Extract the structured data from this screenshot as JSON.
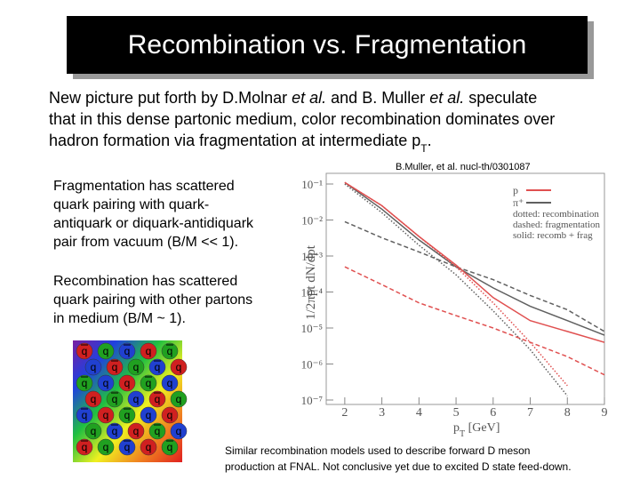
{
  "title": "Recombination vs. Fragmentation",
  "intro": [
    [
      {
        "text": "New picture put forth by D.Molnar "
      },
      {
        "text": "et al.",
        "italic": true
      },
      {
        "text": " and B. Muller "
      },
      {
        "text": "et al.",
        "italic": true
      },
      {
        "text": " speculate"
      }
    ],
    [
      {
        "text": "that in this dense partonic medium, color recombination dominates over"
      }
    ],
    [
      {
        "text": "hadron formation via fragmentation at intermediate p"
      },
      {
        "text": "T",
        "sub": true
      },
      {
        "text": "."
      }
    ]
  ],
  "citation": "B.Muller, et al. nucl-th/0301087",
  "fragmentation": [
    "Fragmentation has scattered",
    "quark pairing with quark-",
    "antiquark or diquark-antidiquark",
    "pair from vacuum (B/M << 1)."
  ],
  "recombination": [
    "Recombination has scattered",
    "quark pairing with other partons",
    "in medium (B/M ~ 1)."
  ],
  "quarks": [
    {
      "label": "q",
      "anti": true
    },
    {
      "label": "q"
    },
    {
      "label": "q",
      "anti": true
    },
    {
      "label": "q"
    },
    {
      "label": "q",
      "anti": true
    },
    {
      "label": "q"
    },
    {
      "label": "q",
      "anti": true
    },
    {
      "label": "q"
    },
    {
      "label": "q",
      "anti": true
    },
    {
      "label": "q"
    },
    {
      "label": "q",
      "anti": true
    },
    {
      "label": "q"
    },
    {
      "label": "q"
    },
    {
      "label": "q",
      "anti": true
    },
    {
      "label": "q"
    },
    {
      "label": "q"
    },
    {
      "label": "q",
      "anti": true
    },
    {
      "label": "q"
    },
    {
      "label": "q",
      "anti": true
    },
    {
      "label": "q"
    },
    {
      "label": "q",
      "anti": true
    },
    {
      "label": "q"
    },
    {
      "label": "q",
      "anti": true
    },
    {
      "label": "q"
    },
    {
      "label": "q"
    },
    {
      "label": "q"
    },
    {
      "label": "q",
      "anti": true
    },
    {
      "label": "q"
    },
    {
      "label": "q",
      "anti": true
    },
    {
      "label": "q"
    },
    {
      "label": "q",
      "anti": true
    },
    {
      "label": "q"
    },
    {
      "label": "q",
      "anti": true
    },
    {
      "label": "q"
    },
    {
      "label": "q",
      "anti": true
    }
  ],
  "footer": [
    "Similar recombination models used to describe forward D meson",
    "production at FNAL.  Not conclusive yet due to excited D state feed-down."
  ],
  "chart_data": {
    "type": "line",
    "y_label": "1/2πpt dN/dpt",
    "x_label": {
      "main": "p",
      "sub": "T",
      "rest": " [GeV]"
    },
    "x": [
      2,
      3,
      4,
      5,
      6,
      7,
      8,
      9
    ],
    "xlim": [
      1.5,
      9
    ],
    "xticks": [
      2,
      3,
      4,
      5,
      6,
      7,
      8,
      9
    ],
    "ylim": [
      1e-07,
      0.1
    ],
    "log_y": true,
    "yticks": [
      {
        "value": 0.1,
        "label": "10⁻¹"
      },
      {
        "value": 0.01,
        "label": "10⁻²"
      },
      {
        "value": 0.001,
        "label": "10⁻³"
      },
      {
        "value": 0.0001,
        "label": "10⁻⁴"
      },
      {
        "value": 1e-05,
        "label": "10⁻⁵"
      },
      {
        "value": 1e-06,
        "label": "10⁻⁶"
      },
      {
        "value": 1e-07,
        "label": "10⁻⁷"
      }
    ],
    "legend": [
      {
        "label": "p",
        "color": "#e05050"
      },
      {
        "label": "π⁺",
        "color": "#606060"
      }
    ],
    "notes": [
      "dotted: recombination",
      "dashed: fragmentation",
      "solid: recomb + frag"
    ],
    "series": [
      {
        "color": "#606060",
        "style": "solid",
        "values": [
          0.11,
          0.02,
          0.0028,
          0.0005,
          0.00013,
          4e-05,
          1.6e-05,
          6.3e-06
        ]
      },
      {
        "color": "#606060",
        "style": "dashed",
        "values": [
          0.009,
          0.0032,
          0.0013,
          0.0005,
          0.00022,
          8e-05,
          3.2e-05,
          8e-06
        ]
      },
      {
        "color": "#606060",
        "style": "dotted",
        "values": [
          0.1,
          0.016,
          0.002,
          0.0003,
          3e-05,
          2.5e-06,
          1.3e-07,
          null
        ]
      },
      {
        "color": "#e05050",
        "style": "solid",
        "values": [
          0.11,
          0.025,
          0.0035,
          0.00056,
          7e-05,
          1.6e-05,
          8e-06,
          4e-06
        ]
      },
      {
        "color": "#e05050",
        "style": "dashed",
        "values": [
          0.0005,
          0.00016,
          5e-05,
          2.2e-05,
          1e-05,
          4e-06,
          1.6e-06,
          5e-07
        ]
      },
      {
        "color": "#e05050",
        "style": "dotted",
        "values": [
          0.11,
          0.025,
          0.0035,
          0.0005,
          5e-05,
          4e-06,
          2.5e-07,
          null
        ]
      }
    ]
  }
}
